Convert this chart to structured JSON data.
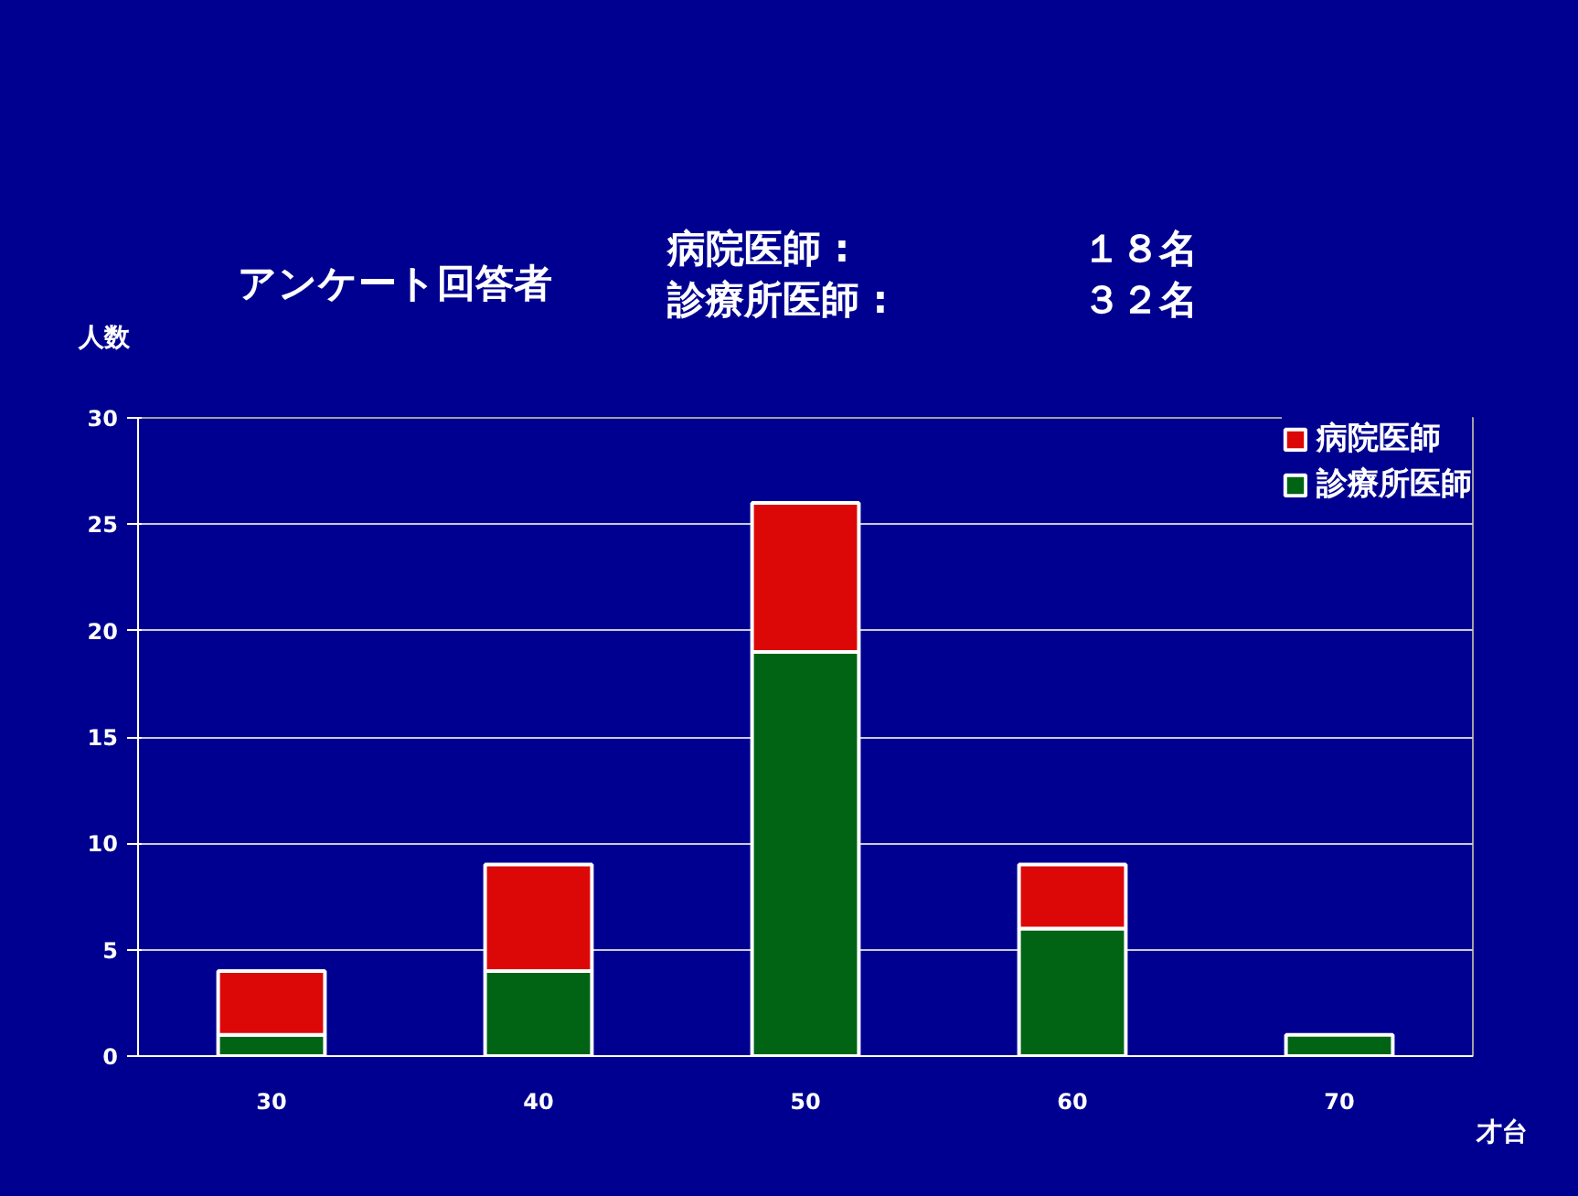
{
  "chart_data": {
    "type": "bar",
    "stacked": true,
    "title": "アンケート回答者",
    "annotations": [
      "病院医師 :",
      "１８名",
      "診療所医師 :",
      "３２名"
    ],
    "ylabel": "人数",
    "xlabel": "才台",
    "categories": [
      "30",
      "40",
      "50",
      "60",
      "70"
    ],
    "series": [
      {
        "name": "診療所医師",
        "color": "#006414",
        "values": [
          1,
          4,
          19,
          6,
          1
        ]
      },
      {
        "name": "病院医師",
        "color": "#dc0808",
        "values": [
          3,
          5,
          7,
          3,
          0
        ]
      }
    ],
    "ylim": [
      0,
      30
    ],
    "yticks": [
      0,
      5,
      10,
      15,
      20,
      25,
      30
    ],
    "grid": "y",
    "legend": "top right"
  }
}
